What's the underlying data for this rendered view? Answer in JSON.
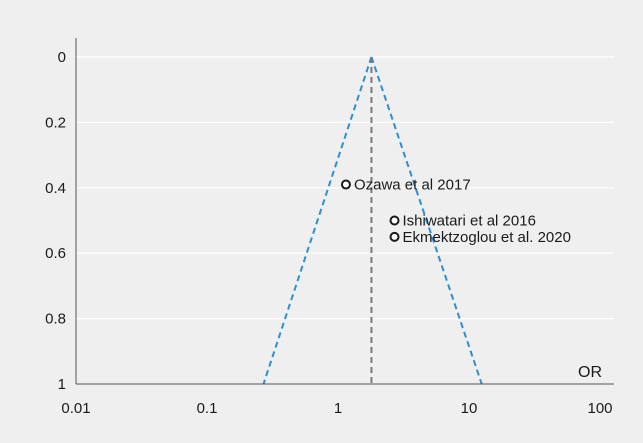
{
  "chart_data": {
    "type": "scatter",
    "chart_kind": "funnel plot",
    "xscale": "log10",
    "xlim": [
      0.01,
      100
    ],
    "ylim": [
      0,
      1
    ],
    "y_inverted": true,
    "grid": "horizontal",
    "x_ticks": [
      0.01,
      0.1,
      1,
      10,
      100
    ],
    "x_tick_labels": [
      "0.01",
      "0.1",
      "1",
      "10",
      "100"
    ],
    "y_ticks": [
      0,
      0.2,
      0.4,
      0.6,
      0.8,
      1
    ],
    "y_tick_labels": [
      "0",
      "0.2",
      "0.4",
      "0.6",
      "0.8",
      "1"
    ],
    "xlabel": "OR",
    "ylabel": "",
    "pooled_or": 1.8,
    "funnel_bounds": {
      "left_at_y1": 0.27,
      "right_at_y1": 12.5
    },
    "points": [
      {
        "label": "Ozawa et al 2017",
        "x": 1.15,
        "y": 0.39
      },
      {
        "label": "Ishiwatari et al 2016",
        "x": 2.7,
        "y": 0.5
      },
      {
        "label": "Ekmektzoglou et al. 2020",
        "x": 2.7,
        "y": 0.55
      }
    ],
    "colors": {
      "funnel": "#2a8fd4",
      "pooled_line": "#7a7a7a",
      "point_stroke": "#1a1a1a",
      "grid": "#ffffff",
      "axis": "#555555",
      "background": "#efefef"
    }
  }
}
